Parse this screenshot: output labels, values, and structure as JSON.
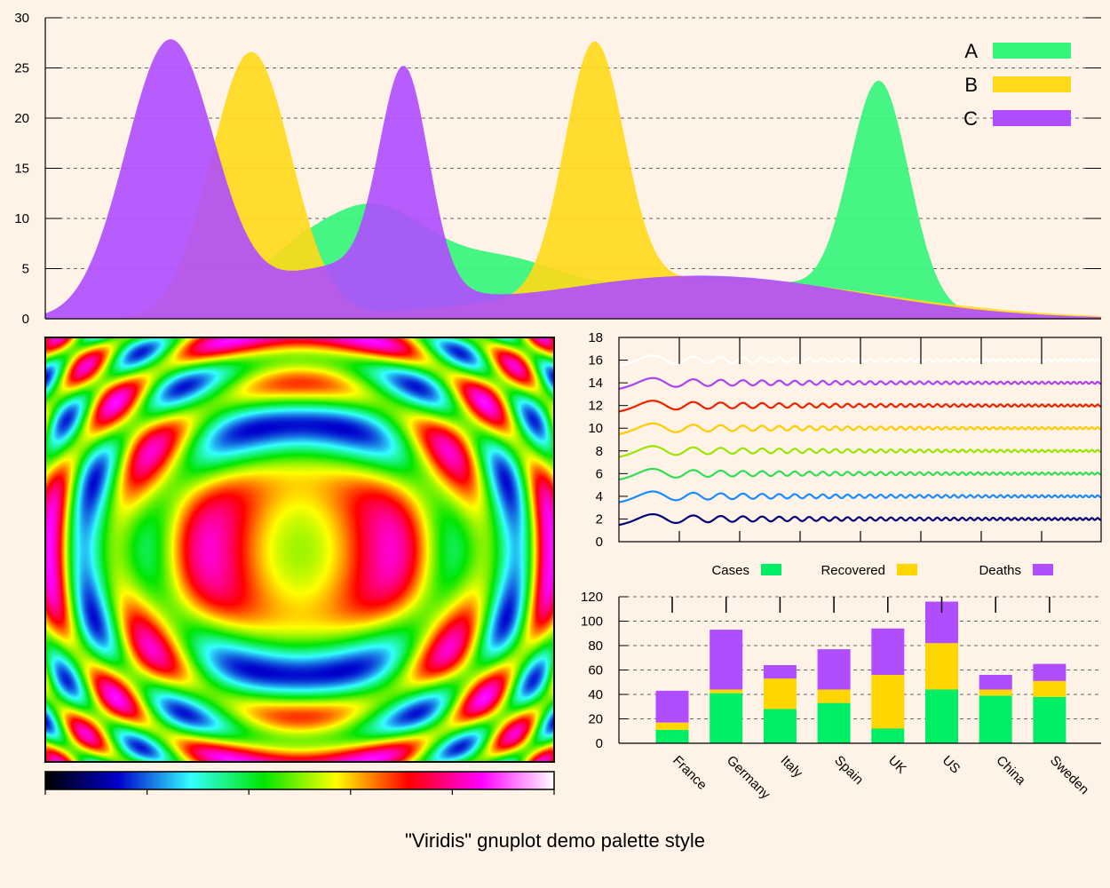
{
  "caption": "\"Viridis\" gnuplot demo palette style",
  "colors": {
    "green": "#33f57a",
    "yellow": "#ffd91a",
    "purple": "#b04dff",
    "background": "#fff2e6"
  },
  "chart_data": [
    {
      "type": "area",
      "title": "",
      "ylim": [
        0,
        30
      ],
      "xlim": [
        0,
        10
      ],
      "yticks": [
        "0",
        "5",
        "10",
        "15",
        "20",
        "25",
        "30"
      ],
      "grid": true,
      "legend_position": "top-right",
      "series": [
        {
          "name": "A",
          "color": "#33f57a",
          "components": [
            {
              "mu": 3.1,
              "sigma": 0.6,
              "amp": 11
            },
            {
              "mu": 2.2,
              "sigma": 0.4,
              "amp": 3
            },
            {
              "mu": 4.4,
              "sigma": 0.5,
              "amp": 4
            },
            {
              "mu": 6.3,
              "sigma": 1.2,
              "amp": 4.2
            },
            {
              "mu": 7.9,
              "sigma": 0.28,
              "amp": 22
            }
          ]
        },
        {
          "name": "B",
          "color": "#ffd91a",
          "components": [
            {
              "mu": 1.95,
              "sigma": 0.38,
              "amp": 26.5
            },
            {
              "mu": 5.2,
              "sigma": 0.28,
              "amp": 24.5
            },
            {
              "mu": 6.3,
              "sigma": 1.6,
              "amp": 4
            }
          ]
        },
        {
          "name": "C",
          "color": "#b04dff",
          "components": [
            {
              "mu": 1.18,
              "sigma": 0.42,
              "amp": 27.5
            },
            {
              "mu": 3.4,
              "sigma": 0.23,
              "amp": 21
            },
            {
              "mu": 2.8,
              "sigma": 0.7,
              "amp": 5
            },
            {
              "mu": 6.2,
              "sigma": 1.5,
              "amp": 4.3
            }
          ]
        }
      ]
    },
    {
      "type": "heatmap",
      "title": "",
      "colorbar_stops": [
        "#000000",
        "#0000cc",
        "#33ffff",
        "#00e600",
        "#ffff00",
        "#ff0000",
        "#ff00ff",
        "#ffffff"
      ]
    },
    {
      "type": "line",
      "title": "",
      "ylim": [
        0,
        18
      ],
      "yticks": [
        "0",
        "2",
        "4",
        "6",
        "8",
        "10",
        "12",
        "14",
        "16",
        "18"
      ],
      "series": [
        {
          "offset": 2,
          "color": "#000080"
        },
        {
          "offset": 4,
          "color": "#1a8cff"
        },
        {
          "offset": 6,
          "color": "#33dd55"
        },
        {
          "offset": 8,
          "color": "#99e600"
        },
        {
          "offset": 10,
          "color": "#ffcc00"
        },
        {
          "offset": 12,
          "color": "#ee2200"
        },
        {
          "offset": 14,
          "color": "#aa44ee"
        },
        {
          "offset": 16,
          "color": "#ffffff"
        }
      ]
    },
    {
      "type": "bar",
      "title": "",
      "stacked": true,
      "ylim": [
        0,
        120
      ],
      "yticks": [
        "0",
        "20",
        "40",
        "60",
        "80",
        "100",
        "120"
      ],
      "categories": [
        "France",
        "Germany",
        "Italy",
        "Spain",
        "UK",
        "US",
        "China",
        "Sweden"
      ],
      "series": [
        {
          "name": "Cases",
          "color": "#00ee66",
          "values": [
            11,
            41,
            28,
            33,
            12,
            44,
            39,
            38
          ]
        },
        {
          "name": "Recovered",
          "color": "#ffd600",
          "values": [
            6,
            3,
            25,
            11,
            44,
            38,
            5,
            13
          ]
        },
        {
          "name": "Deaths",
          "color": "#b04dff",
          "values": [
            26,
            49,
            11,
            33,
            38,
            34,
            12,
            14
          ]
        }
      ],
      "legend_position": "top"
    }
  ]
}
